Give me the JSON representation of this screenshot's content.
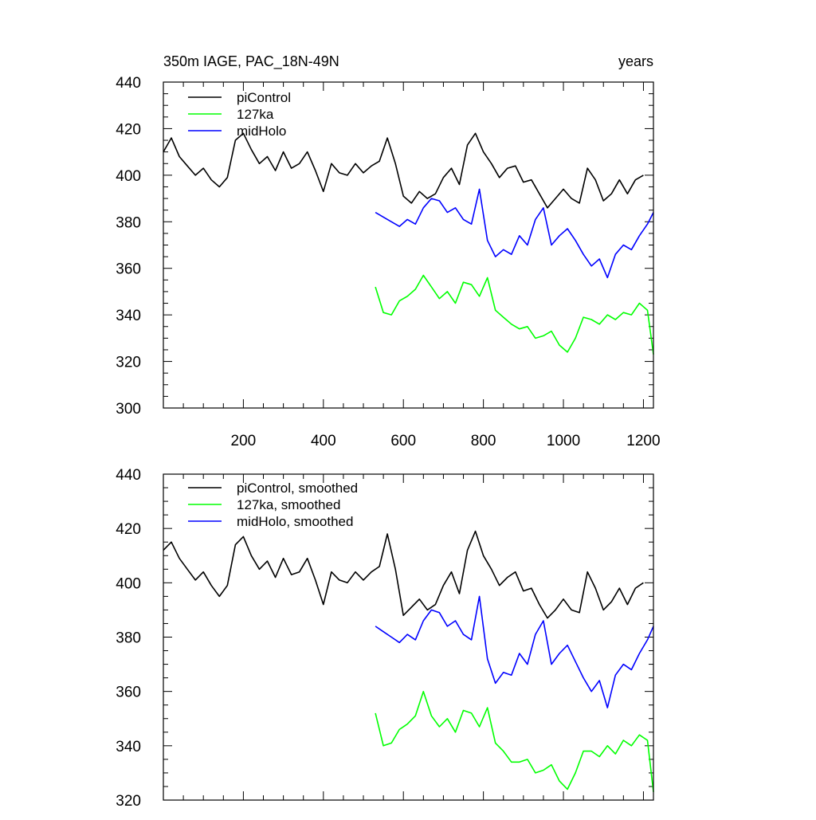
{
  "chart_data": [
    {
      "type": "line",
      "title": "350m IAGE, PAC_18N-49N",
      "title_right": "years",
      "xlabel": "",
      "ylabel": "",
      "xlim": [
        0,
        1225
      ],
      "ylim": [
        300,
        440
      ],
      "xticks": [
        200,
        400,
        600,
        800,
        1000,
        1200
      ],
      "xtick_labels": [
        "200",
        "400",
        "600",
        "800",
        "1000",
        "1200"
      ],
      "yticks": [
        300,
        320,
        340,
        360,
        380,
        400,
        420,
        440
      ],
      "ytick_labels": [
        "300",
        "320",
        "340",
        "360",
        "380",
        "400",
        "420",
        "440"
      ],
      "legend_position": "top-left",
      "grid": false,
      "series": [
        {
          "name": "piControl",
          "color": "#000000",
          "x": [
            0,
            20,
            40,
            60,
            80,
            100,
            120,
            140,
            160,
            180,
            200,
            220,
            240,
            260,
            280,
            300,
            320,
            340,
            360,
            380,
            400,
            420,
            440,
            460,
            480,
            500,
            520,
            540,
            560,
            580,
            600,
            620,
            640,
            660,
            680,
            700,
            720,
            740,
            760,
            780,
            800,
            820,
            840,
            860,
            880,
            900,
            920,
            940,
            960,
            980,
            1000,
            1020,
            1040,
            1060,
            1080,
            1100,
            1120,
            1140,
            1160,
            1180,
            1200
          ],
          "values": [
            410,
            416,
            408,
            404,
            400,
            403,
            398,
            395,
            399,
            415,
            418,
            411,
            405,
            408,
            402,
            410,
            403,
            405,
            410,
            402,
            393,
            405,
            401,
            400,
            405,
            401,
            404,
            406,
            416,
            405,
            391,
            388,
            393,
            390,
            392,
            399,
            403,
            396,
            413,
            418,
            410,
            405,
            399,
            403,
            404,
            397,
            398,
            392,
            386,
            390,
            394,
            390,
            388,
            403,
            398,
            389,
            392,
            398,
            392,
            398,
            400
          ]
        },
        {
          "name": "127ka",
          "color": "#00ff00",
          "x": [
            530,
            550,
            570,
            590,
            610,
            630,
            650,
            670,
            690,
            710,
            730,
            750,
            770,
            790,
            810,
            830,
            850,
            870,
            890,
            910,
            930,
            950,
            970,
            990,
            1010,
            1030,
            1050,
            1070,
            1090,
            1110,
            1130,
            1150,
            1170,
            1190,
            1210,
            1225
          ],
          "values": [
            352,
            341,
            340,
            346,
            348,
            351,
            357,
            352,
            347,
            350,
            345,
            354,
            353,
            348,
            356,
            342,
            339,
            336,
            334,
            335,
            330,
            331,
            333,
            327,
            324,
            330,
            339,
            338,
            336,
            340,
            338,
            341,
            340,
            345,
            342,
            323
          ]
        },
        {
          "name": "midHolo",
          "color": "#0000ff",
          "x": [
            530,
            550,
            570,
            590,
            610,
            630,
            650,
            670,
            690,
            710,
            730,
            750,
            770,
            790,
            810,
            830,
            850,
            870,
            890,
            910,
            930,
            950,
            970,
            990,
            1010,
            1030,
            1050,
            1070,
            1090,
            1110,
            1130,
            1150,
            1170,
            1190,
            1210,
            1225
          ],
          "values": [
            384,
            382,
            380,
            378,
            381,
            379,
            386,
            390,
            389,
            384,
            386,
            381,
            379,
            394,
            372,
            365,
            368,
            366,
            374,
            370,
            381,
            386,
            370,
            374,
            377,
            372,
            366,
            361,
            364,
            356,
            366,
            370,
            368,
            374,
            379,
            384
          ]
        }
      ]
    },
    {
      "type": "line",
      "title": "",
      "xlabel": "",
      "ylabel": "",
      "xlim": [
        0,
        1225
      ],
      "ylim": [
        320,
        440
      ],
      "yticks": [
        320,
        340,
        360,
        380,
        400,
        420,
        440
      ],
      "ytick_labels": [
        "320",
        "340",
        "360",
        "380",
        "400",
        "420",
        "440"
      ],
      "legend_position": "top-left",
      "grid": false,
      "series": [
        {
          "name": "piControl, smoothed",
          "color": "#000000",
          "x": [
            0,
            20,
            40,
            60,
            80,
            100,
            120,
            140,
            160,
            180,
            200,
            220,
            240,
            260,
            280,
            300,
            320,
            340,
            360,
            380,
            400,
            420,
            440,
            460,
            480,
            500,
            520,
            540,
            560,
            580,
            600,
            620,
            640,
            660,
            680,
            700,
            720,
            740,
            760,
            780,
            800,
            820,
            840,
            860,
            880,
            900,
            920,
            940,
            960,
            980,
            1000,
            1020,
            1040,
            1060,
            1080,
            1100,
            1120,
            1140,
            1160,
            1180,
            1200
          ],
          "values": [
            412,
            415,
            409,
            405,
            401,
            404,
            399,
            395,
            399,
            414,
            417,
            410,
            405,
            408,
            402,
            409,
            403,
            404,
            409,
            401,
            392,
            404,
            401,
            400,
            404,
            401,
            404,
            406,
            418,
            405,
            388,
            391,
            394,
            390,
            392,
            399,
            404,
            396,
            412,
            419,
            410,
            405,
            399,
            402,
            404,
            397,
            398,
            392,
            387,
            390,
            394,
            390,
            389,
            404,
            398,
            390,
            393,
            398,
            392,
            398,
            400
          ]
        },
        {
          "name": "127ka, smoothed",
          "color": "#00ff00",
          "x": [
            530,
            550,
            570,
            590,
            610,
            630,
            650,
            670,
            690,
            710,
            730,
            750,
            770,
            790,
            810,
            830,
            850,
            870,
            890,
            910,
            930,
            950,
            970,
            990,
            1010,
            1030,
            1050,
            1070,
            1090,
            1110,
            1130,
            1150,
            1170,
            1190,
            1210,
            1225
          ],
          "values": [
            352,
            340,
            341,
            346,
            348,
            351,
            360,
            351,
            347,
            350,
            345,
            353,
            352,
            347,
            354,
            341,
            338,
            334,
            334,
            335,
            330,
            331,
            333,
            327,
            324,
            330,
            338,
            338,
            336,
            340,
            337,
            342,
            340,
            344,
            342,
            323
          ]
        },
        {
          "name": "midHolo, smoothed",
          "color": "#0000ff",
          "x": [
            530,
            550,
            570,
            590,
            610,
            630,
            650,
            670,
            690,
            710,
            730,
            750,
            770,
            790,
            810,
            830,
            850,
            870,
            890,
            910,
            930,
            950,
            970,
            990,
            1010,
            1030,
            1050,
            1070,
            1090,
            1110,
            1130,
            1150,
            1170,
            1190,
            1210,
            1225
          ],
          "values": [
            384,
            382,
            380,
            378,
            381,
            379,
            386,
            390,
            389,
            384,
            386,
            381,
            379,
            395,
            372,
            363,
            367,
            366,
            374,
            370,
            381,
            386,
            370,
            374,
            377,
            371,
            365,
            360,
            364,
            354,
            366,
            370,
            368,
            374,
            379,
            384
          ]
        }
      ]
    }
  ]
}
